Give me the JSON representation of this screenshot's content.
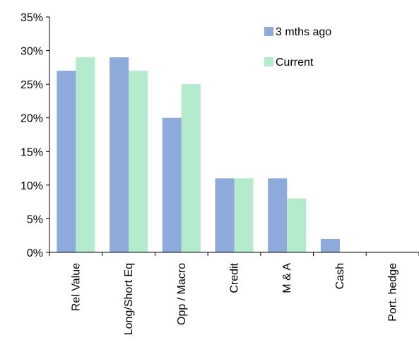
{
  "chart_data": {
    "type": "bar",
    "categories": [
      "Rel Value",
      "Long/Short Eq",
      "Opp / Macro",
      "Credit",
      "M & A",
      "Cash",
      "Port. hedge"
    ],
    "series": [
      {
        "name": "3 mths ago",
        "color": "#8eaadb",
        "values": [
          27,
          29,
          20,
          11,
          11,
          2,
          0
        ]
      },
      {
        "name": "Current",
        "color": "#b3ebcc",
        "values": [
          29,
          27,
          25,
          11,
          8,
          0,
          0
        ]
      }
    ],
    "y_ticks": [
      "0%",
      "5%",
      "10%",
      "15%",
      "20%",
      "25%",
      "30%",
      "35%"
    ],
    "ylim": [
      0,
      35
    ],
    "y_unit": "%",
    "title": "",
    "xlabel": "",
    "ylabel": "",
    "grid": false,
    "legend_position": "top-right"
  }
}
